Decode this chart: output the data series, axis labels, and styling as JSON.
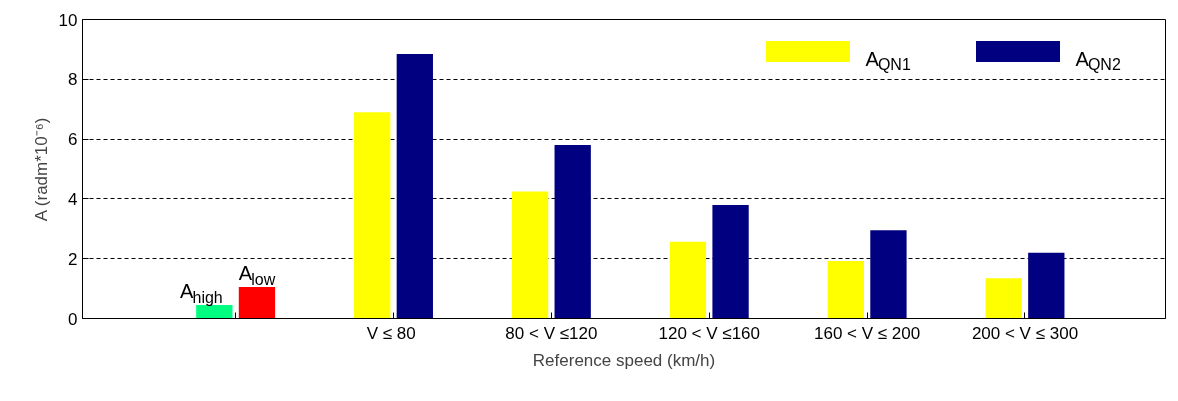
{
  "chart_data": {
    "type": "bar",
    "xlabel": "Reference speed (km/h)",
    "ylabel": "A (radm*10⁻⁶)",
    "categories": [
      null,
      "V ≤  80",
      "80 < V ≤120",
      "120 < V ≤160",
      "160 < V ≤ 200",
      "200 < V ≤ 300"
    ],
    "series": [
      {
        "name": "A$_{high}$",
        "color": "#00ff80",
        "values": [
          0.45,
          null,
          null,
          null,
          null,
          null
        ]
      },
      {
        "name": "A$_{low}$",
        "color": "#ff0000",
        "values": [
          1.05,
          null,
          null,
          null,
          null,
          null
        ]
      },
      {
        "name": "A$_{QN1}$",
        "color": "#ffff00",
        "values": [
          null,
          6.9,
          4.25,
          2.57,
          1.92,
          1.35
        ]
      },
      {
        "name": "A$_{QN2}$",
        "color": "#000080",
        "values": [
          null,
          8.85,
          5.8,
          3.8,
          2.95,
          2.2
        ]
      }
    ],
    "ylim": [
      0,
      10
    ],
    "yticks": [
      0,
      2,
      4,
      6,
      8,
      10
    ],
    "grid": "y",
    "legend": "top right"
  }
}
